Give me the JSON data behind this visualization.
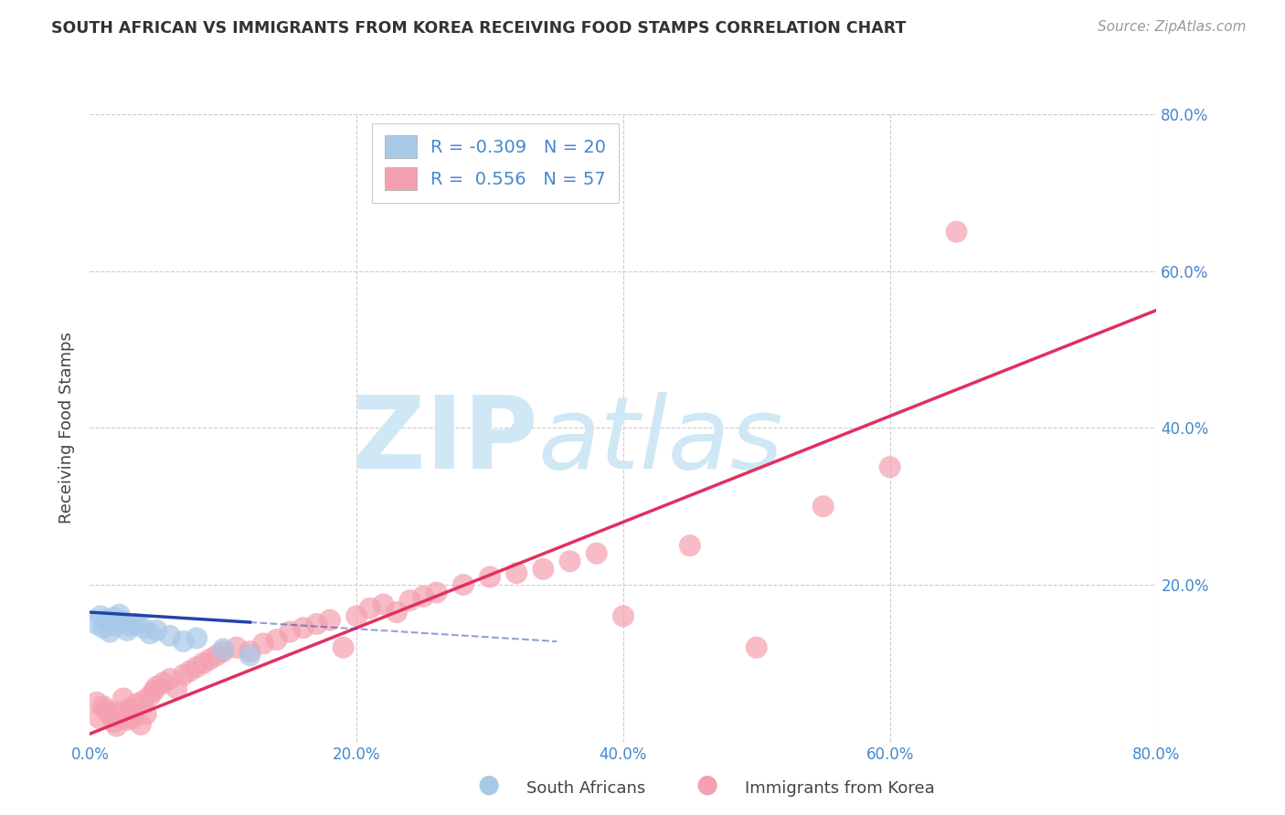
{
  "title": "SOUTH AFRICAN VS IMMIGRANTS FROM KOREA RECEIVING FOOD STAMPS CORRELATION CHART",
  "source": "Source: ZipAtlas.com",
  "ylabel": "Receiving Food Stamps",
  "xlim": [
    0,
    0.8
  ],
  "ylim": [
    0,
    0.8
  ],
  "xtick_vals": [
    0.0,
    0.2,
    0.4,
    0.6,
    0.8
  ],
  "xtick_labels": [
    "0.0%",
    "20.0%",
    "40.0%",
    "60.0%",
    "80.0%"
  ],
  "ytick_vals": [
    0.2,
    0.4,
    0.6,
    0.8
  ],
  "ytick_labels": [
    "20.0%",
    "40.0%",
    "60.0%",
    "80.0%"
  ],
  "legend_r": [
    -0.309,
    0.556
  ],
  "legend_n": [
    20,
    57
  ],
  "color_blue": "#a8c8e8",
  "color_pink": "#f4a0b0",
  "color_line_blue": "#2244aa",
  "color_line_pink": "#e03060",
  "watermark_color": "#d0e8f5",
  "background_color": "#ffffff",
  "grid_color": "#cccccc",
  "title_color": "#333333",
  "axis_color": "#4488cc",
  "source_color": "#999999",
  "sa_x": [
    0.005,
    0.008,
    0.01,
    0.012,
    0.015,
    0.018,
    0.02,
    0.022,
    0.025,
    0.028,
    0.03,
    0.035,
    0.04,
    0.045,
    0.05,
    0.06,
    0.07,
    0.08,
    0.1,
    0.12
  ],
  "sa_y": [
    0.15,
    0.16,
    0.145,
    0.155,
    0.14,
    0.158,
    0.148,
    0.162,
    0.153,
    0.142,
    0.148,
    0.15,
    0.145,
    0.138,
    0.142,
    0.135,
    0.128,
    0.132,
    0.118,
    0.11
  ],
  "ko_x": [
    0.005,
    0.007,
    0.01,
    0.012,
    0.015,
    0.018,
    0.02,
    0.022,
    0.025,
    0.028,
    0.03,
    0.032,
    0.035,
    0.038,
    0.04,
    0.042,
    0.045,
    0.048,
    0.05,
    0.055,
    0.06,
    0.065,
    0.07,
    0.075,
    0.08,
    0.085,
    0.09,
    0.095,
    0.1,
    0.11,
    0.12,
    0.13,
    0.14,
    0.15,
    0.16,
    0.17,
    0.18,
    0.19,
    0.2,
    0.21,
    0.22,
    0.23,
    0.24,
    0.25,
    0.26,
    0.28,
    0.3,
    0.32,
    0.34,
    0.36,
    0.38,
    0.4,
    0.45,
    0.5,
    0.55,
    0.6,
    0.65
  ],
  "ko_y": [
    0.05,
    0.03,
    0.045,
    0.04,
    0.035,
    0.025,
    0.02,
    0.038,
    0.055,
    0.028,
    0.042,
    0.03,
    0.048,
    0.022,
    0.052,
    0.035,
    0.058,
    0.065,
    0.07,
    0.075,
    0.08,
    0.068,
    0.085,
    0.09,
    0.095,
    0.1,
    0.105,
    0.11,
    0.115,
    0.12,
    0.115,
    0.125,
    0.13,
    0.14,
    0.145,
    0.15,
    0.155,
    0.12,
    0.16,
    0.17,
    0.175,
    0.165,
    0.18,
    0.185,
    0.19,
    0.2,
    0.21,
    0.215,
    0.22,
    0.23,
    0.24,
    0.16,
    0.25,
    0.12,
    0.3,
    0.35,
    0.65
  ],
  "sa_line_x": [
    0.0,
    0.8
  ],
  "sa_line_y": [
    0.165,
    0.08
  ],
  "ko_line_x": [
    0.0,
    0.8
  ],
  "ko_line_y": [
    0.01,
    0.55
  ]
}
